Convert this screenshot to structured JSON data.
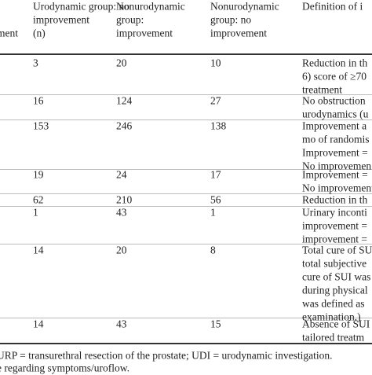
{
  "table": {
    "header": [
      [
        "ment"
      ],
      [
        "Urodynamic group: no",
        "improvement",
        "(n)"
      ],
      [
        "Nonurodynamic",
        "group:",
        "improvement"
      ],
      [
        "Nonurodynamic",
        "group: no",
        "improvement"
      ],
      [
        "Definition of i"
      ]
    ],
    "header_units": [
      "(n)",
      "(n)"
    ],
    "rows": [
      [
        "3",
        "20",
        "10",
        [
          "Reduction in th",
          "6) score of ≥70",
          "treatment"
        ]
      ],
      [
        "16",
        "124",
        "27",
        [
          "No obstruction",
          "urodynamics (u"
        ]
      ],
      [
        "153",
        "246",
        "138",
        [
          "Improvement a",
          "mo of randomis",
          "Improvement =",
          "No improvemen"
        ]
      ],
      [
        "19",
        "24",
        "17",
        [
          "Improvement =",
          "No improvement"
        ]
      ],
      [
        "62",
        "210",
        "56",
        [
          "Reduction in th"
        ]
      ],
      [
        "1",
        "43",
        "1",
        [
          "Urinary inconti",
          "improvement =",
          "improvement ="
        ]
      ],
      [
        "14",
        "20",
        "8",
        [
          "Total cure of SU",
          "total subjective",
          "cure of SUI was",
          "during physical",
          "was defined as",
          "examination.)"
        ]
      ],
      [
        "14",
        "43",
        "15",
        [
          "Absence of SUI",
          "tailored treatm"
        ]
      ]
    ],
    "footnote": [
      "URP = transurethral resection of the prostate; UDI = urodynamic investigation.",
      "e regarding symptoms/uroflow."
    ]
  }
}
